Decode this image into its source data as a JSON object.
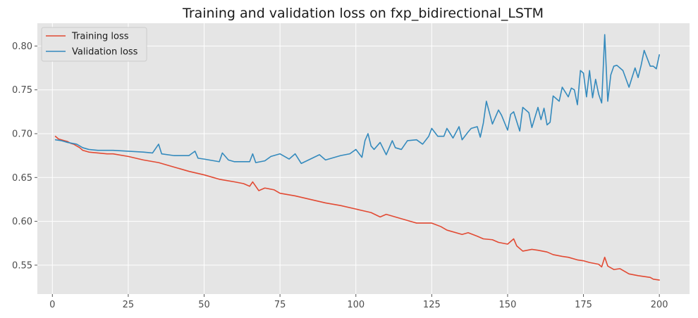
{
  "chart_data": {
    "type": "line",
    "title": "Training and validation loss on fxp_bidirectional_LSTM",
    "xlabel": "",
    "ylabel": "",
    "xlim": [
      -4.95,
      209.95
    ],
    "ylim": [
      0.517,
      0.826
    ],
    "xticks": [
      0,
      25,
      50,
      75,
      100,
      125,
      150,
      175,
      200
    ],
    "yticks": [
      0.55,
      0.6,
      0.65,
      0.7,
      0.75,
      0.8
    ],
    "ytick_labels": [
      "0.55",
      "0.60",
      "0.65",
      "0.70",
      "0.75",
      "0.80"
    ],
    "grid": true,
    "legend_position": "upper-left",
    "background": "#e5e5e5",
    "series": [
      {
        "name": "Training loss",
        "color": "#e24a33",
        "x": [
          1,
          2,
          3,
          4,
          5,
          6,
          7,
          8,
          9,
          10,
          12,
          15,
          18,
          20,
          25,
          30,
          35,
          40,
          45,
          50,
          55,
          60,
          63,
          65,
          66,
          68,
          70,
          73,
          75,
          80,
          85,
          90,
          95,
          100,
          105,
          108,
          110,
          113,
          115,
          118,
          120,
          125,
          128,
          130,
          135,
          137,
          140,
          142,
          145,
          147,
          150,
          152,
          153,
          155,
          158,
          160,
          163,
          165,
          168,
          170,
          173,
          175,
          177,
          180,
          181,
          182,
          183,
          185,
          187,
          190,
          193,
          195,
          197,
          198,
          200
        ],
        "y": [
          0.697,
          0.694,
          0.693,
          0.692,
          0.691,
          0.689,
          0.688,
          0.686,
          0.684,
          0.681,
          0.679,
          0.678,
          0.677,
          0.677,
          0.674,
          0.67,
          0.667,
          0.662,
          0.657,
          0.653,
          0.648,
          0.645,
          0.643,
          0.64,
          0.645,
          0.635,
          0.638,
          0.636,
          0.632,
          0.629,
          0.625,
          0.621,
          0.618,
          0.614,
          0.61,
          0.605,
          0.608,
          0.605,
          0.603,
          0.6,
          0.598,
          0.598,
          0.594,
          0.59,
          0.585,
          0.587,
          0.583,
          0.58,
          0.579,
          0.576,
          0.574,
          0.58,
          0.572,
          0.566,
          0.568,
          0.567,
          0.565,
          0.562,
          0.56,
          0.559,
          0.556,
          0.555,
          0.553,
          0.551,
          0.548,
          0.559,
          0.549,
          0.545,
          0.546,
          0.54,
          0.538,
          0.537,
          0.536,
          0.534,
          0.533
        ]
      },
      {
        "name": "Validation loss",
        "color": "#348abd",
        "x": [
          1,
          3,
          5,
          8,
          10,
          12,
          15,
          20,
          25,
          30,
          33,
          35,
          36,
          40,
          45,
          47,
          48,
          50,
          55,
          56,
          58,
          60,
          65,
          66,
          67,
          70,
          72,
          75,
          78,
          80,
          82,
          85,
          88,
          90,
          93,
          95,
          98,
          100,
          102,
          103,
          104,
          105,
          106,
          108,
          110,
          112,
          113,
          115,
          117,
          120,
          122,
          124,
          125,
          127,
          129,
          130,
          132,
          134,
          135,
          137,
          138,
          140,
          141,
          142,
          143,
          145,
          147,
          148,
          150,
          151,
          152,
          154,
          155,
          157,
          158,
          160,
          161,
          162,
          163,
          164,
          165,
          167,
          168,
          170,
          171,
          172,
          173,
          174,
          175,
          176,
          177,
          178,
          179,
          180,
          181,
          182,
          183,
          184,
          185,
          186,
          187,
          188,
          190,
          192,
          193,
          194,
          195,
          197,
          198,
          199,
          200
        ],
        "y": [
          0.693,
          0.692,
          0.69,
          0.688,
          0.684,
          0.682,
          0.681,
          0.681,
          0.68,
          0.679,
          0.678,
          0.688,
          0.677,
          0.675,
          0.675,
          0.68,
          0.672,
          0.671,
          0.668,
          0.678,
          0.67,
          0.668,
          0.668,
          0.677,
          0.667,
          0.669,
          0.674,
          0.677,
          0.671,
          0.677,
          0.666,
          0.671,
          0.676,
          0.67,
          0.673,
          0.675,
          0.677,
          0.682,
          0.673,
          0.692,
          0.7,
          0.686,
          0.682,
          0.69,
          0.676,
          0.692,
          0.684,
          0.682,
          0.692,
          0.693,
          0.688,
          0.697,
          0.706,
          0.697,
          0.697,
          0.706,
          0.695,
          0.708,
          0.693,
          0.702,
          0.706,
          0.708,
          0.696,
          0.712,
          0.737,
          0.711,
          0.727,
          0.721,
          0.704,
          0.722,
          0.725,
          0.703,
          0.73,
          0.724,
          0.707,
          0.73,
          0.716,
          0.729,
          0.71,
          0.713,
          0.743,
          0.737,
          0.753,
          0.742,
          0.752,
          0.75,
          0.733,
          0.772,
          0.769,
          0.742,
          0.772,
          0.741,
          0.762,
          0.745,
          0.735,
          0.813,
          0.737,
          0.767,
          0.777,
          0.778,
          0.775,
          0.772,
          0.753,
          0.775,
          0.764,
          0.778,
          0.795,
          0.777,
          0.777,
          0.774,
          0.79
        ]
      }
    ]
  }
}
